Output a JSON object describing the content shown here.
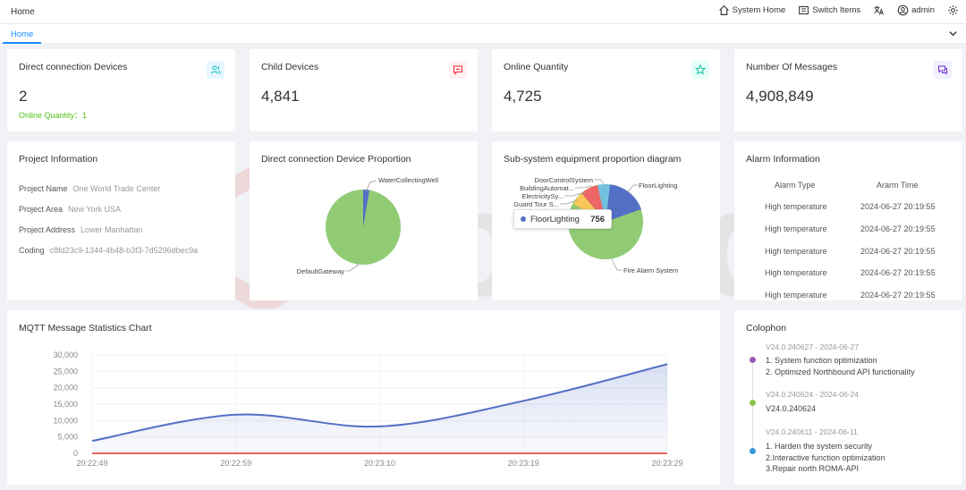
{
  "topbar": {
    "home": "Home",
    "system_home": "System Home",
    "switch_items": "Switch Items",
    "user": "admin"
  },
  "tabs": {
    "home": "Home"
  },
  "stats": {
    "direct": {
      "title": "Direct connection Devices",
      "value": "2",
      "sub_label": "Online Quantity：",
      "sub_value": "1"
    },
    "child": {
      "title": "Child Devices",
      "value": "4,841"
    },
    "online": {
      "title": "Online Quantity",
      "value": "4,725"
    },
    "messages": {
      "title": "Number Of Messages",
      "value": "4,908,849"
    }
  },
  "project": {
    "title": "Project Information",
    "rows": [
      {
        "label": "Project Name",
        "value": "One World Trade Center"
      },
      {
        "label": "Project Area",
        "value": "New York USA"
      },
      {
        "label": "Project Address",
        "value": "Lower Manhattan"
      },
      {
        "label": "Coding",
        "value": "c8fd23c9-1344-4b48-b3f3-7d5296dbec9a"
      }
    ]
  },
  "direct_proportion": {
    "title": "Direct connection Device Proportion",
    "labels": {
      "a": "WaterCollectingWell",
      "b": "DefaultGateway"
    }
  },
  "subsystem": {
    "title": "Sub-system equipment proportion diagram",
    "labels": {
      "door": "DoorControlSystem",
      "building": "BuildingAutomat...",
      "electric": "ElectricitySy...",
      "guard": "Guard Tour S...",
      "floor": "FloorLighting",
      "fire": "Fire Alarm System"
    },
    "tooltip": {
      "name": "FloorLighting",
      "value": "756"
    }
  },
  "alarm": {
    "title": "Alarm Information",
    "col_type": "Alarm Type",
    "col_time": "Ararm Time",
    "rows": [
      {
        "type": "High temperature",
        "time": "2024-06-27 20:19:55"
      },
      {
        "type": "High temperature",
        "time": "2024-06-27 20:19:55"
      },
      {
        "type": "High temperature",
        "time": "2024-06-27 20:19:55"
      },
      {
        "type": "High temperature",
        "time": "2024-06-27 20:19:55"
      },
      {
        "type": "High temperature",
        "time": "2024-06-27 20:19:55"
      }
    ]
  },
  "mqtt": {
    "title": "MQTT Message Statistics Chart"
  },
  "colophon": {
    "title": "Colophon",
    "entries": [
      {
        "version": "V24.0.240627 - 2024-06-27",
        "color": "#9b59b6",
        "notes": [
          "1. System function optimization",
          "2. Optimized Northbound API functionality"
        ]
      },
      {
        "version": "V24.0.240624 - 2024-06-24",
        "color": "#8bc34a",
        "notes": [
          "V24.0.240624"
        ]
      },
      {
        "version": "V24.0.240611 - 2024-06-11",
        "color": "#3498db",
        "notes": [
          "1. Harden the system security",
          "2.Interactive function optimization",
          "3.Repair north ROMA-API"
        ]
      }
    ]
  },
  "watermark": {
    "text": "ebuild"
  },
  "colors": {
    "accent": "#1890ff",
    "green": "#52c41a",
    "pie_green": "#91cc75",
    "pie_blue": "#5470c6",
    "line_blue": "#5470c6",
    "line_red": "#ee6666"
  },
  "chart_data": {
    "type": "line",
    "title": "MQTT Message Statistics Chart",
    "xlabel": "",
    "ylabel": "",
    "x": [
      "20:22:49",
      "20:22:59",
      "20:23:10",
      "20:23:19",
      "20:23:29"
    ],
    "ylim": [
      0,
      30000
    ],
    "yticks": [
      "30,000",
      "25,000",
      "20,000",
      "15,000",
      "10,000",
      "5,000",
      "0"
    ],
    "series": [
      {
        "name": "series-blue",
        "color": "#5470c6",
        "values": [
          3800,
          11800,
          8200,
          16000,
          27200
        ],
        "smooth": true,
        "area": true
      },
      {
        "name": "series-red",
        "color": "#ee6666",
        "values": [
          0,
          0,
          0,
          0,
          0
        ]
      }
    ],
    "grid": true
  }
}
